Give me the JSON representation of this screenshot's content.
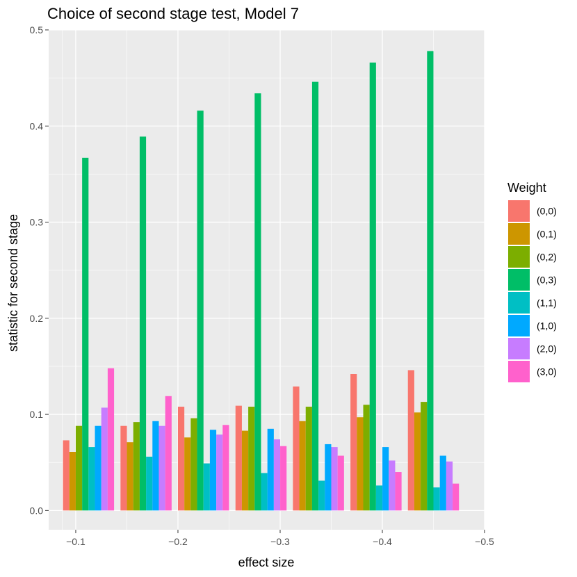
{
  "chart_data": {
    "type": "bar",
    "title": "Choice of second stage test, Model 7",
    "xlabel": "effect size",
    "ylabel": "statistic for second stage",
    "x_axis": {
      "reversed": true,
      "range": [
        -0.0735,
        -0.5
      ],
      "ticks": [
        -0.1,
        -0.2,
        -0.3,
        -0.4,
        -0.5
      ],
      "tick_labels": [
        "−0.1",
        "−0.2",
        "−0.3",
        "−0.4",
        "−0.5"
      ]
    },
    "y_axis": {
      "range": [
        -0.02,
        0.5
      ],
      "ticks": [
        0.0,
        0.1,
        0.2,
        0.3,
        0.4,
        0.5
      ],
      "tick_labels": [
        "0.0",
        "0.1",
        "0.2",
        "0.3",
        "0.4",
        "0.5"
      ]
    },
    "bar_group_width": 0.05,
    "x": [
      -0.1125,
      -0.1688,
      -0.225,
      -0.2813,
      -0.3375,
      -0.3938,
      -0.45
    ],
    "legend_title": "Weight",
    "legend_position": "right",
    "series": [
      {
        "name": "(0,0)",
        "color": "#F8766D",
        "values": [
          0.073,
          0.088,
          0.108,
          0.109,
          0.129,
          0.142,
          0.146
        ]
      },
      {
        "name": "(0,1)",
        "color": "#CD9600",
        "values": [
          0.061,
          0.071,
          0.076,
          0.083,
          0.093,
          0.097,
          0.102
        ]
      },
      {
        "name": "(0,2)",
        "color": "#7CAE00",
        "values": [
          0.088,
          0.092,
          0.096,
          0.108,
          0.108,
          0.11,
          0.113
        ]
      },
      {
        "name": "(0,3)",
        "color": "#00BE67",
        "values": [
          0.367,
          0.389,
          0.416,
          0.434,
          0.446,
          0.466,
          0.478
        ]
      },
      {
        "name": "(1,1)",
        "color": "#00BFC4",
        "values": [
          0.066,
          0.056,
          0.049,
          0.039,
          0.031,
          0.026,
          0.024
        ]
      },
      {
        "name": "(1,0)",
        "color": "#00A9FF",
        "values": [
          0.088,
          0.093,
          0.084,
          0.085,
          0.069,
          0.066,
          0.057
        ]
      },
      {
        "name": "(2,0)",
        "color": "#C77CFF",
        "values": [
          0.107,
          0.088,
          0.079,
          0.074,
          0.066,
          0.052,
          0.051
        ]
      },
      {
        "name": "(3,0)",
        "color": "#FF61CC",
        "values": [
          0.148,
          0.119,
          0.089,
          0.067,
          0.057,
          0.04,
          0.028
        ]
      }
    ]
  }
}
